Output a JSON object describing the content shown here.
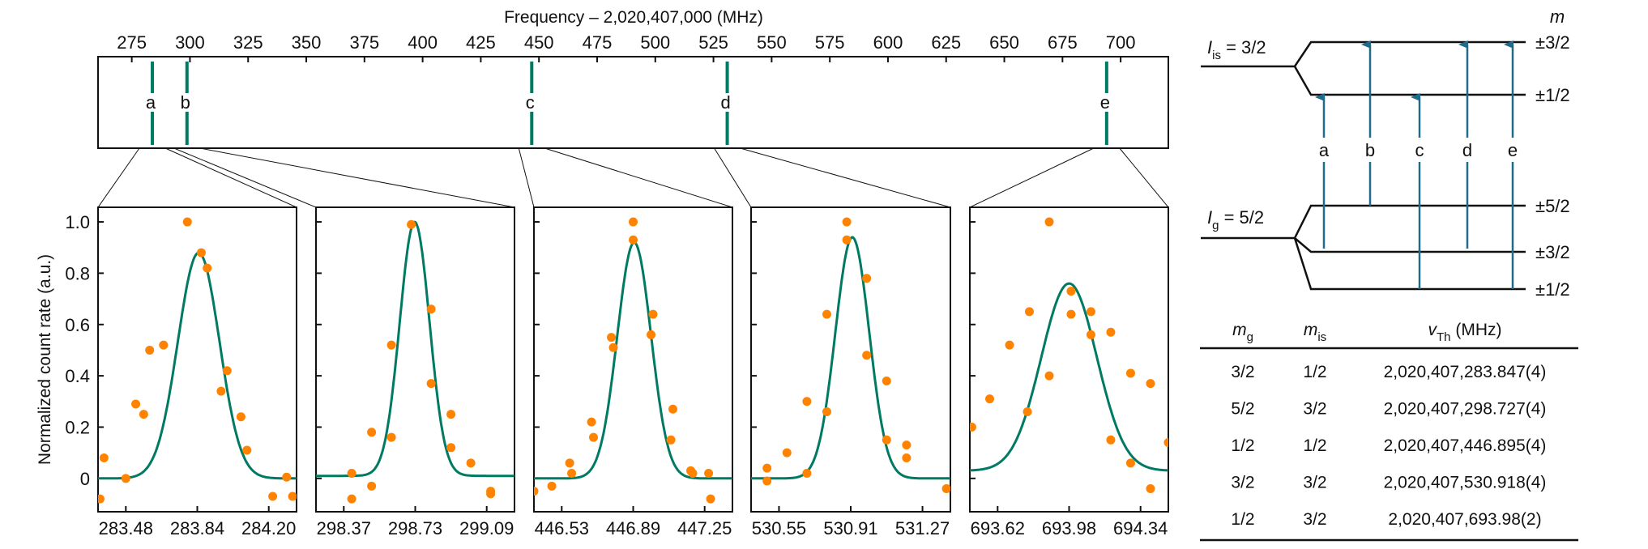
{
  "colors": {
    "fit": "#007a63",
    "points": "#ff8200",
    "peak_marker": "#007a63",
    "transition_arrow": "#1f6b8c",
    "ink": "#111111"
  },
  "chart_data": [
    {
      "type": "line",
      "id": "overview",
      "title": "Frequency – 2,020,407,000 (MHz)",
      "xlabel": "Frequency – 2,020,407,000 (MHz)",
      "x_ticks": [
        275,
        300,
        325,
        350,
        375,
        400,
        425,
        450,
        475,
        500,
        525,
        550,
        575,
        600,
        625,
        650,
        675,
        700
      ],
      "x_range": [
        260.5,
        720.5
      ],
      "peaks": [
        {
          "label": "a",
          "x": 283.847
        },
        {
          "label": "b",
          "x": 298.727
        },
        {
          "label": "c",
          "x": 446.895
        },
        {
          "label": "d",
          "x": 530.918
        },
        {
          "label": "e",
          "x": 693.98
        }
      ]
    },
    {
      "type": "scatter",
      "id": "peak-a",
      "ylabel": "Normalized count rate (a.u.)",
      "x_ticks": [
        "283.48",
        "283.84",
        "284.20"
      ],
      "x_range": [
        283.34,
        284.34
      ],
      "y_ticks": [
        "0",
        "0.2",
        "0.4",
        "0.6",
        "0.8",
        "1.0"
      ],
      "y_range": [
        -0.13,
        1.057
      ],
      "fit": {
        "center": 283.847,
        "amplitude": 0.88,
        "sigma": 0.105,
        "offset": 0.0
      },
      "points": [
        [
          283.35,
          -0.08
        ],
        [
          283.37,
          0.08
        ],
        [
          283.48,
          0.0
        ],
        [
          283.53,
          0.29
        ],
        [
          283.57,
          0.25
        ],
        [
          283.6,
          0.5
        ],
        [
          283.67,
          0.52
        ],
        [
          283.79,
          1.0
        ],
        [
          283.86,
          0.88
        ],
        [
          283.89,
          0.82
        ],
        [
          283.96,
          0.34
        ],
        [
          283.99,
          0.42
        ],
        [
          284.06,
          0.24
        ],
        [
          284.09,
          0.11
        ],
        [
          284.22,
          -0.07
        ],
        [
          284.29,
          0.005
        ],
        [
          284.32,
          -0.07
        ]
      ]
    },
    {
      "type": "scatter",
      "id": "peak-b",
      "x_ticks": [
        "298.37",
        "298.73",
        "299.09"
      ],
      "x_range": [
        298.23,
        299.23
      ],
      "y_range": [
        -0.13,
        1.057
      ],
      "fit": {
        "center": 298.727,
        "amplitude": 0.99,
        "sigma": 0.075,
        "offset": 0.01
      },
      "points": [
        [
          298.41,
          -0.08
        ],
        [
          298.41,
          0.02
        ],
        [
          298.51,
          -0.03
        ],
        [
          298.51,
          0.18
        ],
        [
          298.61,
          0.16
        ],
        [
          298.61,
          0.52
        ],
        [
          298.71,
          0.99
        ],
        [
          298.81,
          0.66
        ],
        [
          298.81,
          0.37
        ],
        [
          298.91,
          0.25
        ],
        [
          298.91,
          0.12
        ],
        [
          299.01,
          0.06
        ],
        [
          299.11,
          -0.05
        ],
        [
          299.11,
          -0.06
        ]
      ]
    },
    {
      "type": "scatter",
      "id": "peak-c",
      "x_ticks": [
        "446.53",
        "446.89",
        "447.25"
      ],
      "x_range": [
        446.39,
        447.39
      ],
      "y_range": [
        -0.13,
        1.057
      ],
      "fit": {
        "center": 446.895,
        "amplitude": 0.92,
        "sigma": 0.085,
        "offset": 0.0
      },
      "points": [
        [
          446.39,
          -0.05
        ],
        [
          446.48,
          -0.03
        ],
        [
          446.57,
          0.06
        ],
        [
          446.58,
          0.02
        ],
        [
          446.68,
          0.22
        ],
        [
          446.69,
          0.16
        ],
        [
          446.78,
          0.55
        ],
        [
          446.79,
          0.51
        ],
        [
          446.89,
          1.0
        ],
        [
          446.89,
          0.93
        ],
        [
          446.99,
          0.64
        ],
        [
          446.98,
          0.56
        ],
        [
          447.09,
          0.27
        ],
        [
          447.08,
          0.15
        ],
        [
          447.18,
          0.03
        ],
        [
          447.19,
          0.02
        ],
        [
          447.27,
          0.02
        ],
        [
          447.28,
          -0.08
        ]
      ]
    },
    {
      "type": "scatter",
      "id": "peak-d",
      "x_ticks": [
        "530.55",
        "530.91",
        "531.27"
      ],
      "x_range": [
        530.41,
        531.41
      ],
      "y_range": [
        -0.13,
        1.057
      ],
      "fit": {
        "center": 530.918,
        "amplitude": 0.94,
        "sigma": 0.085,
        "offset": 0.0
      },
      "points": [
        [
          530.49,
          0.04
        ],
        [
          530.49,
          -0.01
        ],
        [
          530.59,
          0.1
        ],
        [
          530.69,
          0.3
        ],
        [
          530.69,
          0.02
        ],
        [
          530.79,
          0.64
        ],
        [
          530.79,
          0.26
        ],
        [
          530.89,
          1.0
        ],
        [
          530.89,
          0.93
        ],
        [
          530.99,
          0.78
        ],
        [
          530.99,
          0.48
        ],
        [
          531.09,
          0.38
        ],
        [
          531.09,
          0.15
        ],
        [
          531.19,
          0.13
        ],
        [
          531.19,
          0.08
        ],
        [
          531.39,
          -0.04
        ]
      ]
    },
    {
      "type": "scatter",
      "id": "peak-e",
      "x_ticks": [
        "693.62",
        "693.98",
        "694.34"
      ],
      "x_range": [
        693.48,
        694.48
      ],
      "y_range": [
        -0.13,
        1.057
      ],
      "fit": {
        "center": 693.98,
        "amplitude": 0.73,
        "sigma": 0.14,
        "offset": 0.03
      },
      "points": [
        [
          693.49,
          0.2
        ],
        [
          693.58,
          0.31
        ],
        [
          693.68,
          0.52
        ],
        [
          693.78,
          0.65
        ],
        [
          693.77,
          0.26
        ],
        [
          693.88,
          1.0
        ],
        [
          693.88,
          0.4
        ],
        [
          693.99,
          0.73
        ],
        [
          693.99,
          0.64
        ],
        [
          694.09,
          0.65
        ],
        [
          694.09,
          0.56
        ],
        [
          694.19,
          0.57
        ],
        [
          694.19,
          0.15
        ],
        [
          694.29,
          0.41
        ],
        [
          694.29,
          0.06
        ],
        [
          694.39,
          0.37
        ],
        [
          694.39,
          -0.04
        ],
        [
          694.48,
          0.14
        ]
      ]
    }
  ],
  "level_diagram": {
    "upper_state": {
      "label_main": "I",
      "label_sub": "is",
      "label_value": " = 3/2",
      "sublevels": [
        "±3/2",
        "±1/2"
      ]
    },
    "ground_state": {
      "label_main": "I",
      "label_sub": "g",
      "label_value": " = 5/2",
      "sublevels": [
        "±5/2",
        "±3/2",
        "±1/2"
      ]
    },
    "m_header": "m",
    "transitions": [
      {
        "label": "a",
        "from": "±3/2",
        "to": "±1/2"
      },
      {
        "label": "b",
        "from": "±5/2",
        "to": "±3/2"
      },
      {
        "label": "c",
        "from": "±1/2",
        "to": "±1/2"
      },
      {
        "label": "d",
        "from": "±3/2",
        "to": "±3/2"
      },
      {
        "label": "e",
        "from": "±1/2",
        "to": "±3/2"
      }
    ]
  },
  "table": {
    "headers": [
      {
        "main": "m",
        "sub": "g",
        "italic": true
      },
      {
        "main": "m",
        "sub": "is",
        "italic": true
      },
      {
        "main": "v",
        "sub": "Th",
        "suffix": " (MHz)",
        "italic": true
      }
    ],
    "rows": [
      [
        "3/2",
        "1/2",
        "2,020,407,283.847(4)"
      ],
      [
        "5/2",
        "3/2",
        "2,020,407,298.727(4)"
      ],
      [
        "1/2",
        "1/2",
        "2,020,407,446.895(4)"
      ],
      [
        "3/2",
        "3/2",
        "2,020,407,530.918(4)"
      ],
      [
        "1/2",
        "3/2",
        "2,020,407,693.98(2)"
      ]
    ]
  }
}
